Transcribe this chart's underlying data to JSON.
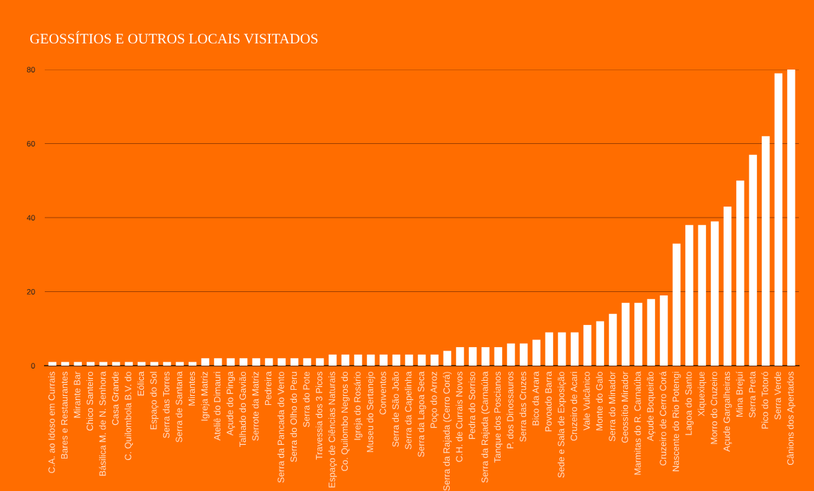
{
  "chart_data": {
    "type": "bar",
    "title": "GEOSSÍTIOS E OUTROS LOCAIS VISITADOS",
    "categories": [
      "C.A. ao Idoso em Currais",
      "Bares e Restaurantes",
      "Mirante Bar",
      "Chico Santeiro",
      "Básilica M. de N. Senhora",
      "Casa Grande",
      "C. Quilombola B.V. do",
      "Eólica",
      "Espaço do Sol",
      "Serra das Torres",
      "Serra de Santana",
      "Mirantes",
      "Igreja Matriz",
      "Ateliê do Dimauri",
      "Açude do Pinga",
      "Talhado do Gavião",
      "Serrote da Matriz",
      "Pedreira",
      "Serra da Pancada do Vento",
      "Serra do Olho do Peru",
      "Serra do Pote",
      "Travessia dos 3 Picos",
      "Espaço de Ciências Naturais",
      "Co. Quilombo Negros do",
      "Igreja do Rosário",
      "Museu do Sertanejo",
      "Conventos",
      "Serra de São João",
      "Serra da Capelinha",
      "Serra da Lagoa Seca",
      "Poço do Arroz",
      "Serra da Rajada (Cerro Corá)",
      "C.H. de Currais Novos",
      "Pedra do Sorriso",
      "Serra da Rajada (Carnaúba",
      "Tanque dos Poscianos",
      "P. dos Dinossauros",
      "Serra das Cruzes",
      "Bico da Arara",
      "Povoado Barra",
      "Sede e Sala de Exposição",
      "Cruzeiro de Acari",
      "Vale Vulcânico",
      "Monte do Galo",
      "Serra do Minador",
      "Geossítio Mirador",
      "Marmitas do R. Carnaúba",
      "Açude Boqueirão",
      "Cruzeiro de Cerro Corá",
      "Nascente do Rio Potengi",
      "Lagoa do Santo",
      "Xiquexique",
      "Morro do Cruzeiro",
      "Açude Gargalheiras",
      "Mina Brejuí",
      "Serra Preta",
      "Pico do Totoró",
      "Serra Verde",
      "Cânions dos Apertados"
    ],
    "values": [
      1,
      1,
      1,
      1,
      1,
      1,
      1,
      1,
      1,
      1,
      1,
      1,
      2,
      2,
      2,
      2,
      2,
      2,
      2,
      2,
      2,
      2,
      3,
      3,
      3,
      3,
      3,
      3,
      3,
      3,
      3,
      4,
      5,
      5,
      5,
      5,
      6,
      6,
      7,
      9,
      9,
      9,
      11,
      12,
      14,
      17,
      17,
      18,
      19,
      33,
      38,
      38,
      39,
      43,
      50,
      57,
      62,
      79,
      80
    ],
    "color": "#ffffff",
    "ylim": [
      0,
      80
    ],
    "yticks": [
      0,
      20,
      40,
      60,
      80
    ],
    "grid": "y"
  }
}
